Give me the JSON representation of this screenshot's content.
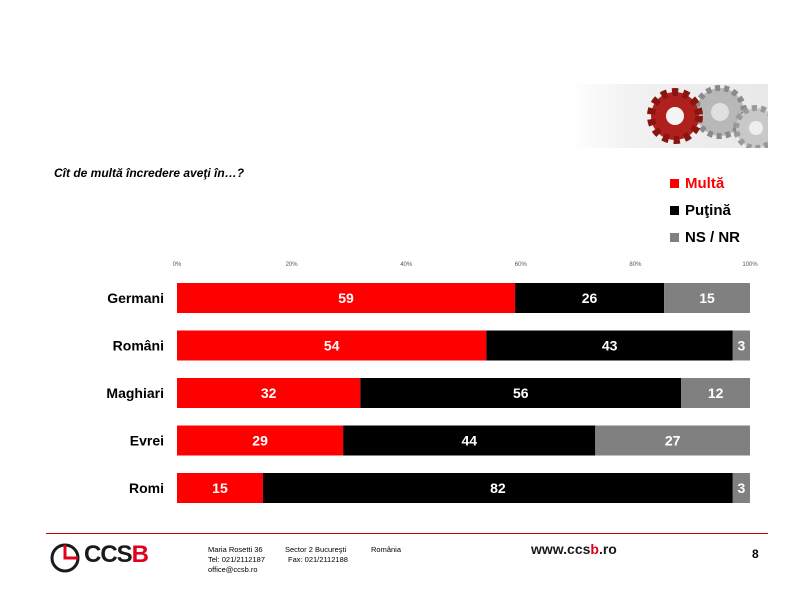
{
  "question": "Cît de multă încredere aveţi în…?",
  "legend": [
    {
      "label": "Multă",
      "color": "#ff0000"
    },
    {
      "label": "Puţină",
      "color": "#000000"
    },
    {
      "label": "NS / NR",
      "color": "#808080"
    }
  ],
  "chart_data": {
    "type": "bar",
    "orientation": "horizontal",
    "stacked": true,
    "percent": true,
    "xlim": [
      0,
      100
    ],
    "x_ticks": [
      "0%",
      "20%",
      "40%",
      "60%",
      "80%",
      "100%"
    ],
    "categories": [
      "Germani",
      "Români",
      "Maghiari",
      "Evrei",
      "Romi"
    ],
    "series": [
      {
        "name": "Multă",
        "color": "#ff0000",
        "values": [
          59,
          54,
          32,
          29,
          15
        ]
      },
      {
        "name": "Puţină",
        "color": "#000000",
        "values": [
          26,
          43,
          56,
          44,
          82
        ]
      },
      {
        "name": "NS / NR",
        "color": "#808080",
        "values": [
          15,
          3,
          12,
          27,
          3
        ]
      }
    ],
    "data_labels": true,
    "grid": false,
    "legend_position": "top-right"
  },
  "footer": {
    "logo_text_main": "CCS",
    "logo_text_accent": "B",
    "address_line1": [
      "Maria Rosetti 36",
      "Sector 2  Bucureşti",
      "România"
    ],
    "address_line2": [
      "Tel: 021/2112187",
      "Fax: 021/2112188"
    ],
    "email": "office@ccsb.ro",
    "website_pre": "www.ccs",
    "website_accent": "b",
    "website_post": ".ro",
    "page_number": "8"
  }
}
